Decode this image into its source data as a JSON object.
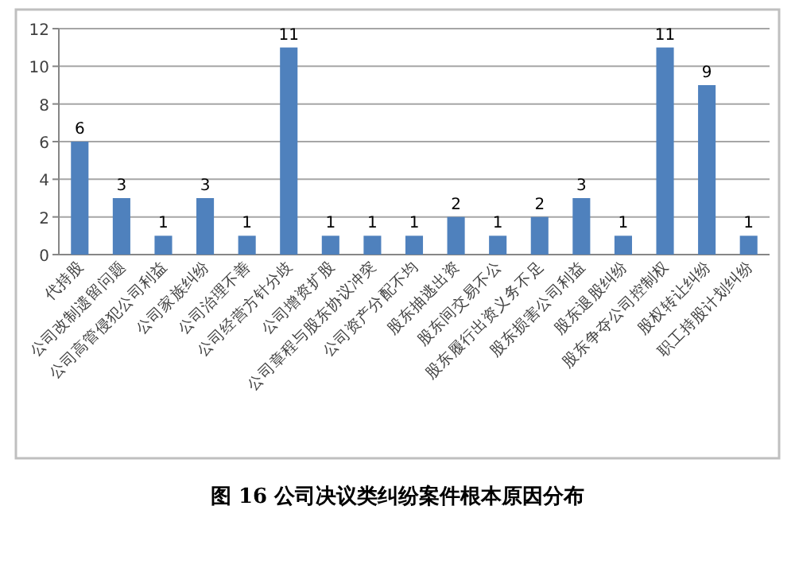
{
  "chart_data": {
    "type": "bar",
    "categories": [
      "代持股",
      "公司改制遗留问题",
      "公司高管侵犯公司利益",
      "公司家族纠纷",
      "公司治理不善",
      "公司经营方针分歧",
      "公司增资扩股",
      "公司章程与股东协议冲突",
      "公司资产分配不均",
      "股东抽逃出资",
      "股东间交易不公",
      "股东履行出资义务不足",
      "股东损害公司利益",
      "股东退股纠纷",
      "股东争夺公司控制权",
      "股权转让纠纷",
      "职工持股计划纠纷"
    ],
    "values": [
      6,
      3,
      1,
      3,
      1,
      11,
      1,
      1,
      1,
      2,
      1,
      2,
      3,
      1,
      11,
      9,
      1
    ],
    "color": "#4f81bd",
    "ylim": [
      0,
      12
    ],
    "yticks": [
      0,
      2,
      4,
      6,
      8,
      10,
      12
    ],
    "grid": "y",
    "data_labels": true,
    "annotations": [
      "图 16 公司决议类纠纷案件根本原因分布"
    ]
  }
}
